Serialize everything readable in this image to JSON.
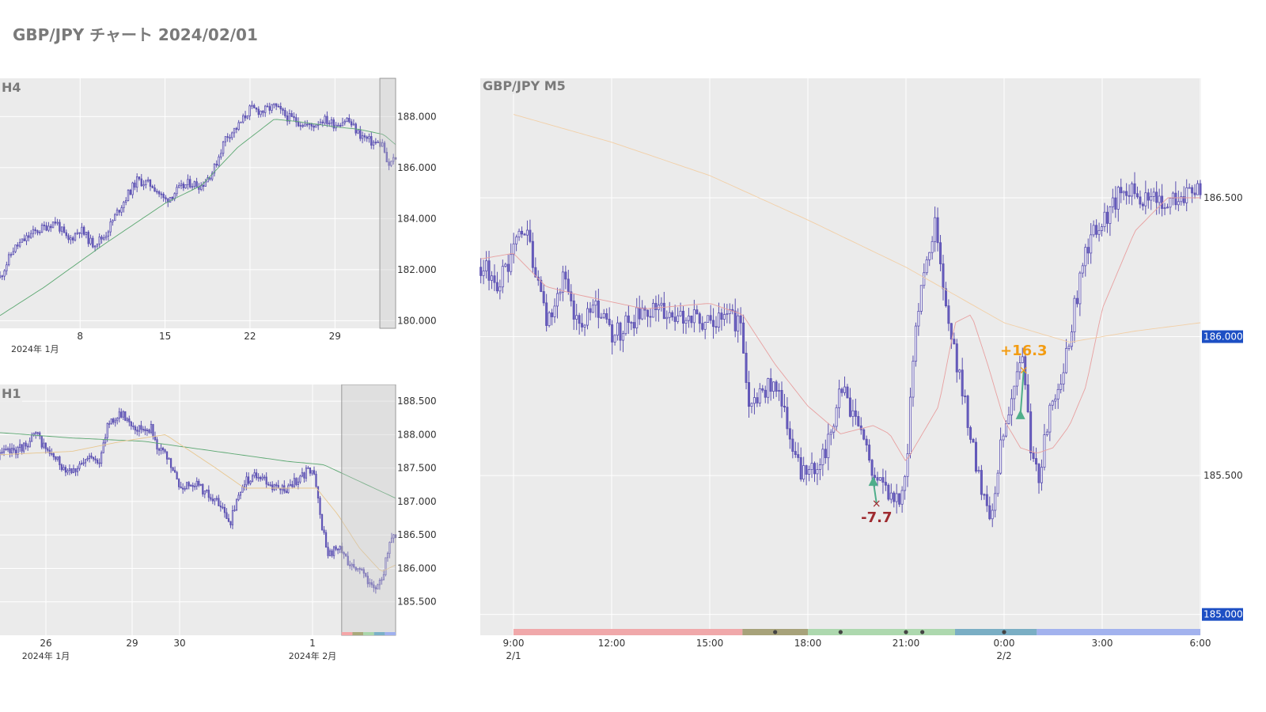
{
  "page": {
    "title": "GBP/JPY チャート 2024/02/01"
  },
  "chart_data": [
    {
      "id": "h4",
      "type": "candlestick",
      "title": "H4",
      "ylim": [
        179.7,
        189.5
      ],
      "y_ticks": [
        "188.000",
        "186.000",
        "184.000",
        "182.000",
        "180.000"
      ],
      "y_tick_values": [
        188,
        186,
        184,
        182,
        180
      ],
      "x_ticks": [
        {
          "label": "8",
          "sub": "2024年 1月",
          "day": 8
        },
        {
          "label": "15",
          "sub": "",
          "day": 15
        },
        {
          "label": "22",
          "sub": "",
          "day": 22
        },
        {
          "label": "29",
          "sub": "",
          "day": 29
        }
      ],
      "x_range_days": [
        1.4,
        34.0
      ],
      "highlight_days": [
        32.7,
        34.0
      ],
      "series": [
        {
          "name": "",
          "kind": "candle",
          "close_path": [
            [
              1.4,
              181.7
            ],
            [
              2.5,
              182.8
            ],
            [
              4,
              183.4
            ],
            [
              6,
              183.9
            ],
            [
              7,
              183.1
            ],
            [
              8,
              183.6
            ],
            [
              9,
              183.0
            ],
            [
              10,
              183.3
            ],
            [
              11,
              184.2
            ],
            [
              12,
              185.0
            ],
            [
              12.7,
              185.5
            ],
            [
              14,
              185.3
            ],
            [
              15,
              184.7
            ],
            [
              16,
              185.1
            ],
            [
              17,
              185.4
            ],
            [
              18,
              185.3
            ],
            [
              19,
              185.9
            ],
            [
              20,
              187.2
            ],
            [
              21,
              187.6
            ],
            [
              22,
              188.3
            ],
            [
              23,
              188.2
            ],
            [
              24,
              188.4
            ],
            [
              25,
              188.0
            ],
            [
              26,
              187.8
            ],
            [
              27,
              187.6
            ],
            [
              28,
              187.9
            ],
            [
              29,
              187.7
            ],
            [
              30,
              187.9
            ],
            [
              31,
              187.3
            ],
            [
              32,
              187.0
            ],
            [
              33,
              186.9
            ],
            [
              33.3,
              186.0
            ],
            [
              34.0,
              186.4
            ]
          ]
        },
        {
          "name": "",
          "kind": "ma",
          "color": "#5aa770",
          "path": [
            [
              1.4,
              180.2
            ],
            [
              5,
              181.3
            ],
            [
              10,
              183.0
            ],
            [
              15,
              184.6
            ],
            [
              18,
              185.3
            ],
            [
              21,
              186.8
            ],
            [
              24,
              187.9
            ],
            [
              26,
              187.8
            ],
            [
              29,
              187.6
            ],
            [
              31,
              187.5
            ],
            [
              33,
              187.3
            ],
            [
              34,
              186.9
            ]
          ]
        }
      ]
    },
    {
      "id": "h1",
      "type": "candlestick",
      "title": "H1",
      "ylim": [
        185.0,
        188.75
      ],
      "y_ticks": [
        "188.500",
        "188.000",
        "187.500",
        "187.000",
        "186.500",
        "186.000",
        "185.500"
      ],
      "y_tick_values": [
        188.5,
        188.0,
        187.5,
        187.0,
        186.5,
        186.0,
        185.5
      ],
      "x_ticks": [
        {
          "label": "26",
          "sub": "2024年 1月",
          "t": 1.0
        },
        {
          "label": "29",
          "sub": "",
          "t": 2.0
        },
        {
          "label": "30",
          "sub": "",
          "t": 3.0
        },
        {
          "label": "1",
          "sub": "2024年 2月",
          "t": 5.0
        }
      ],
      "x_range_t": [
        0.5,
        6.0
      ],
      "highlight_t": [
        5.25,
        6.0
      ],
      "session_strip": [
        "#f4a6a8",
        "#a9a97a",
        "#aad6ab",
        "#7ab0c7",
        "#9fb0ee"
      ],
      "series": [
        {
          "name": "",
          "kind": "candle",
          "close_path": [
            [
              0.5,
              187.7
            ],
            [
              0.8,
              187.8
            ],
            [
              1.0,
              188.0
            ],
            [
              1.2,
              187.7
            ],
            [
              1.4,
              187.5
            ],
            [
              1.6,
              187.5
            ],
            [
              1.8,
              187.7
            ],
            [
              1.9,
              187.6
            ],
            [
              2.0,
              188.2
            ],
            [
              2.2,
              188.3
            ],
            [
              2.4,
              188.1
            ],
            [
              2.6,
              188.1
            ],
            [
              2.7,
              187.8
            ],
            [
              2.85,
              187.6
            ],
            [
              3.0,
              187.2
            ],
            [
              3.2,
              187.3
            ],
            [
              3.5,
              187.0
            ],
            [
              3.7,
              186.7
            ],
            [
              3.9,
              187.3
            ],
            [
              4.1,
              187.4
            ],
            [
              4.3,
              187.2
            ],
            [
              4.5,
              187.2
            ],
            [
              4.7,
              187.4
            ],
            [
              4.85,
              187.5
            ],
            [
              4.95,
              186.8
            ],
            [
              5.05,
              186.2
            ],
            [
              5.2,
              186.3
            ],
            [
              5.35,
              186.1
            ],
            [
              5.5,
              186.0
            ],
            [
              5.65,
              185.7
            ],
            [
              5.8,
              185.8
            ],
            [
              5.9,
              186.3
            ],
            [
              6.0,
              186.5
            ]
          ]
        },
        {
          "name": "",
          "kind": "ma",
          "color": "#5aa770",
          "path": [
            [
              0.5,
              188.03
            ],
            [
              1.5,
              187.95
            ],
            [
              2.5,
              187.9
            ],
            [
              3.5,
              187.75
            ],
            [
              4.5,
              187.6
            ],
            [
              5.0,
              187.55
            ],
            [
              5.5,
              187.3
            ],
            [
              6.0,
              187.05
            ]
          ]
        },
        {
          "name": "",
          "kind": "ma",
          "color": "#e8c790",
          "path": [
            [
              0.5,
              187.7
            ],
            [
              1.5,
              187.75
            ],
            [
              2.2,
              187.9
            ],
            [
              2.8,
              188.0
            ],
            [
              3.5,
              187.5
            ],
            [
              3.9,
              187.2
            ],
            [
              4.5,
              187.2
            ],
            [
              4.9,
              187.2
            ],
            [
              5.2,
              186.8
            ],
            [
              5.5,
              186.3
            ],
            [
              5.8,
              185.95
            ],
            [
              6.0,
              186.05
            ]
          ]
        }
      ]
    },
    {
      "id": "m5",
      "type": "candlestick",
      "title": "GBP/JPY M5",
      "ylim": [
        184.925,
        186.93
      ],
      "y_ticks": [
        "186.500",
        "186.000",
        "185.500",
        "185.000"
      ],
      "y_tick_values": [
        186.5,
        186.0,
        185.5,
        185.0
      ],
      "y_highlight_ticks": [
        "186.000",
        "185.000"
      ],
      "x_ticks": [
        {
          "label": "9:00",
          "sub": "2/1",
          "h": 9
        },
        {
          "label": "12:00",
          "sub": "",
          "h": 12
        },
        {
          "label": "15:00",
          "sub": "",
          "h": 15
        },
        {
          "label": "18:00",
          "sub": "",
          "h": 18
        },
        {
          "label": "21:00",
          "sub": "",
          "h": 21
        },
        {
          "label": "0:00",
          "sub": "2/2",
          "h": 24
        },
        {
          "label": "3:00",
          "sub": "",
          "h": 27
        },
        {
          "label": "6:00",
          "sub": "",
          "h": 30
        }
      ],
      "x_range_h": [
        8.0,
        30.0
      ],
      "session_strip": [
        {
          "from": 9.0,
          "to": 16.0,
          "color": "#f0a8aa"
        },
        {
          "from": 16.0,
          "to": 18.0,
          "color": "#a7a27a"
        },
        {
          "from": 18.0,
          "to": 22.5,
          "color": "#add8ae"
        },
        {
          "from": 22.5,
          "to": 25.0,
          "color": "#7aaec4"
        },
        {
          "from": 25.0,
          "to": 30.0,
          "color": "#a2b2ee"
        }
      ],
      "event_dots_h": [
        17.0,
        19.0,
        21.0,
        21.5,
        24.0
      ],
      "series": [
        {
          "name": "",
          "kind": "candle",
          "close_path": [
            [
              8.0,
              186.25
            ],
            [
              8.5,
              186.2
            ],
            [
              8.9,
              186.25
            ],
            [
              9.1,
              186.35
            ],
            [
              9.4,
              186.4
            ],
            [
              9.7,
              186.2
            ],
            [
              10.0,
              186.05
            ],
            [
              10.5,
              186.2
            ],
            [
              11.0,
              186.05
            ],
            [
              11.5,
              186.1
            ],
            [
              12.0,
              186.0
            ],
            [
              12.5,
              186.05
            ],
            [
              13.0,
              186.08
            ],
            [
              13.5,
              186.1
            ],
            [
              14.0,
              186.05
            ],
            [
              14.5,
              186.08
            ],
            [
              15.0,
              186.05
            ],
            [
              15.5,
              186.1
            ],
            [
              16.0,
              186.02
            ],
            [
              16.2,
              185.75
            ],
            [
              16.5,
              185.8
            ],
            [
              17.0,
              185.85
            ],
            [
              17.3,
              185.7
            ],
            [
              17.6,
              185.55
            ],
            [
              18.0,
              185.48
            ],
            [
              18.3,
              185.55
            ],
            [
              18.6,
              185.6
            ],
            [
              19.0,
              185.82
            ],
            [
              19.5,
              185.7
            ],
            [
              20.0,
              185.5
            ],
            [
              20.5,
              185.45
            ],
            [
              20.8,
              185.42
            ],
            [
              21.0,
              185.5
            ],
            [
              21.2,
              185.9
            ],
            [
              21.5,
              186.25
            ],
            [
              21.9,
              186.4
            ],
            [
              22.2,
              186.1
            ],
            [
              22.5,
              185.92
            ],
            [
              22.9,
              185.7
            ],
            [
              23.2,
              185.5
            ],
            [
              23.6,
              185.35
            ],
            [
              23.9,
              185.6
            ],
            [
              24.2,
              185.75
            ],
            [
              24.4,
              185.9
            ],
            [
              24.6,
              185.9
            ],
            [
              24.8,
              185.6
            ],
            [
              25.1,
              185.5
            ],
            [
              25.4,
              185.75
            ],
            [
              25.7,
              185.85
            ],
            [
              26.0,
              186.0
            ],
            [
              26.3,
              186.2
            ],
            [
              26.6,
              186.35
            ],
            [
              27.0,
              186.4
            ],
            [
              27.5,
              186.5
            ],
            [
              28.0,
              186.52
            ],
            [
              28.5,
              186.48
            ],
            [
              29.0,
              186.5
            ],
            [
              29.5,
              186.5
            ],
            [
              30.0,
              186.52
            ]
          ]
        },
        {
          "name": "",
          "kind": "ma",
          "color": "#e8a0a0",
          "path": [
            [
              8.0,
              186.28
            ],
            [
              9.0,
              186.3
            ],
            [
              10.0,
              186.18
            ],
            [
              11.0,
              186.15
            ],
            [
              13.0,
              186.1
            ],
            [
              15.0,
              186.12
            ],
            [
              16.0,
              186.08
            ],
            [
              17.0,
              185.9
            ],
            [
              18.0,
              185.75
            ],
            [
              19.0,
              185.65
            ],
            [
              20.0,
              185.68
            ],
            [
              20.5,
              185.65
            ],
            [
              21.0,
              185.55
            ],
            [
              22.0,
              185.75
            ],
            [
              22.5,
              186.05
            ],
            [
              23.0,
              186.08
            ],
            [
              23.5,
              185.9
            ],
            [
              24.0,
              185.7
            ],
            [
              24.5,
              185.6
            ],
            [
              25.0,
              185.58
            ],
            [
              25.5,
              185.6
            ],
            [
              26.0,
              185.68
            ],
            [
              26.5,
              185.82
            ],
            [
              27.0,
              186.1
            ],
            [
              28.0,
              186.38
            ],
            [
              29.0,
              186.5
            ],
            [
              30.0,
              186.5
            ]
          ]
        },
        {
          "name": "",
          "kind": "ma",
          "color": "#f2cfa6",
          "path": [
            [
              9.0,
              186.8
            ],
            [
              12.0,
              186.7
            ],
            [
              15.0,
              186.58
            ],
            [
              18.0,
              186.42
            ],
            [
              21.0,
              186.25
            ],
            [
              24.0,
              186.05
            ],
            [
              26.0,
              185.98
            ],
            [
              28.0,
              186.02
            ],
            [
              30.0,
              186.05
            ]
          ]
        }
      ],
      "trades": [
        {
          "entry_h": 20.0,
          "entry_price": 185.48,
          "exit_h": 20.1,
          "exit_price": 185.4,
          "result": "-7.7",
          "color": "#9e2a2f",
          "entry_color": "#4fae8a",
          "label_h": 20.1,
          "label_price": 185.35
        },
        {
          "entry_h": 24.5,
          "entry_price": 185.72,
          "exit_h": 24.6,
          "exit_price": 185.88,
          "result": "+16.3",
          "color": "#f39c12",
          "entry_color": "#4fae8a",
          "label_h": 24.6,
          "label_price": 185.95
        }
      ]
    }
  ]
}
